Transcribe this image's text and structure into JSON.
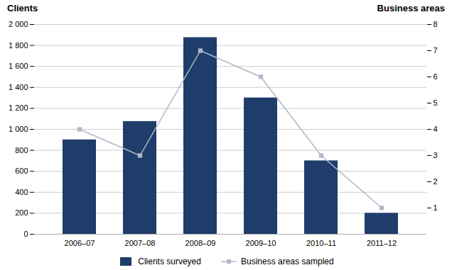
{
  "chart_data": {
    "type": "bar",
    "categories": [
      "2006–07",
      "2007–08",
      "2008–09",
      "2009–10",
      "2010–11",
      "2011–12"
    ],
    "ylabel": "Clients",
    "y2label": "Business areas",
    "series": [
      {
        "name": "Clients surveyed",
        "type": "bar",
        "color": "#1f3d6b",
        "values": [
          900,
          1075,
          1875,
          1300,
          700,
          200
        ]
      },
      {
        "name": "Business areas sampled",
        "type": "line",
        "axis": "y2",
        "color": "#b0b8c8",
        "marker": "square",
        "values": [
          4,
          3,
          7,
          6,
          3,
          1
        ]
      }
    ],
    "ylim": [
      0,
      2000
    ],
    "yticks": [
      0,
      200,
      400,
      600,
      800,
      {
        "value": 1000,
        "label": "1 000"
      },
      {
        "value": 1200,
        "label": "1 200"
      },
      {
        "value": 1400,
        "label": "1 400"
      },
      {
        "value": 1600,
        "label": "1 600"
      },
      {
        "value": 1800,
        "label": "1 800"
      },
      {
        "value": 2000,
        "label": "2 000"
      }
    ],
    "y2lim": [
      0,
      8
    ],
    "y2ticks": [
      1,
      2,
      3,
      4,
      5,
      6,
      7,
      8
    ],
    "grid": true,
    "legend": "bottom"
  }
}
